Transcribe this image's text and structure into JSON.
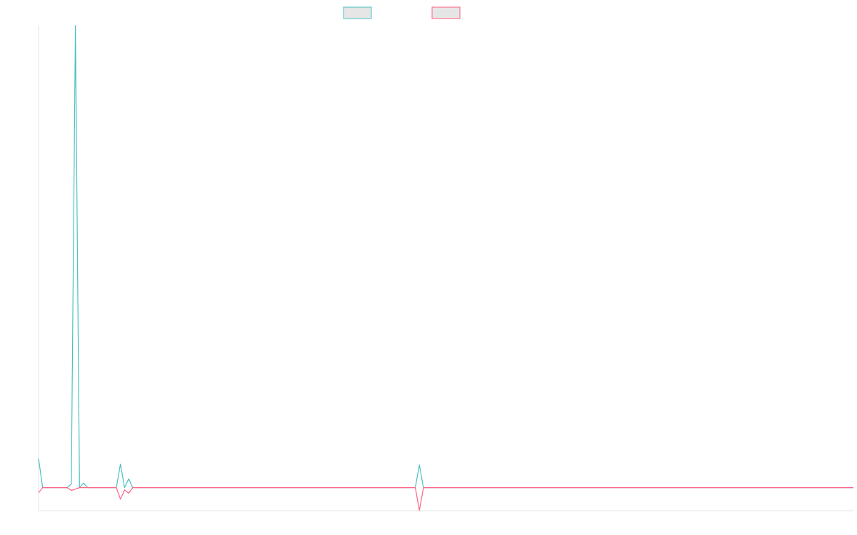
{
  "chart_data": {
    "type": "line",
    "categories": [
      null,
      null,
      null,
      null,
      null,
      null,
      null,
      null,
      null,
      null,
      null,
      null,
      null,
      null,
      null,
      null,
      null,
      null,
      null,
      null,
      null,
      null,
      null,
      null,
      null,
      null,
      null,
      null,
      null,
      null,
      null,
      null,
      null,
      null,
      null,
      null,
      null,
      null,
      null,
      null,
      null,
      null,
      null,
      null,
      null,
      null,
      null,
      null,
      null,
      null,
      null,
      null,
      null,
      null,
      null,
      null,
      null,
      null,
      null,
      null,
      null,
      null,
      null,
      null,
      null,
      null,
      null,
      null,
      null,
      null,
      null,
      null,
      null,
      null,
      null,
      null,
      null,
      null,
      null,
      null,
      null,
      null,
      null,
      null,
      null,
      null,
      null,
      null,
      null,
      null,
      null,
      null,
      null,
      null,
      null,
      null,
      null,
      null,
      null,
      null,
      null,
      null,
      null,
      null,
      null,
      null,
      null,
      null,
      null,
      null,
      null,
      null,
      null,
      null,
      null,
      null,
      null,
      null,
      null,
      null,
      null,
      null,
      null,
      null,
      null,
      null,
      null,
      null,
      null,
      null,
      null,
      null,
      null,
      null,
      null,
      null,
      null,
      null,
      null,
      null,
      null,
      null,
      null,
      null,
      null,
      null,
      null,
      null,
      null,
      null,
      null,
      null,
      null,
      null,
      null,
      null,
      null,
      null,
      null,
      null,
      null,
      null,
      null,
      null,
      null,
      null,
      null,
      null,
      null,
      null,
      null,
      null,
      null,
      null,
      null,
      null,
      null,
      null,
      null,
      null,
      null,
      null,
      null,
      null,
      null,
      null,
      null,
      null,
      null,
      null,
      null,
      null,
      null,
      null,
      null,
      null,
      null,
      null,
      null,
      null
    ],
    "series": [
      {
        "color": "#4bc0c0",
        "values": [
          6.3,
          0,
          0,
          0,
          0,
          0,
          0,
          0,
          0.8,
          100,
          0,
          1,
          0,
          0,
          0,
          0,
          0,
          0,
          0,
          0,
          5.1,
          0,
          1.9,
          0,
          0,
          0,
          0,
          0,
          0,
          0,
          0,
          0,
          0,
          0,
          0,
          0,
          0,
          0,
          0,
          0,
          0,
          0,
          0,
          0,
          0,
          0,
          0,
          0,
          0,
          0,
          0,
          0,
          0,
          0,
          0,
          0,
          0,
          0,
          0,
          0,
          0,
          0,
          0,
          0,
          0,
          0,
          0,
          0,
          0,
          0,
          0,
          0,
          0,
          0,
          0,
          0,
          0,
          0,
          0,
          0,
          0,
          0,
          0,
          0,
          0,
          0,
          0,
          0,
          0,
          0,
          0,
          0,
          0,
          4.9,
          0,
          0,
          0,
          0,
          0,
          0,
          0,
          0,
          0,
          0,
          0,
          0,
          0,
          0,
          0,
          0,
          0,
          0,
          0,
          0,
          0,
          0,
          0,
          0,
          0,
          0,
          0,
          0,
          0,
          0,
          0,
          0,
          0,
          0,
          0,
          0,
          0,
          0,
          0,
          0,
          0,
          0,
          0,
          0,
          0,
          0,
          0,
          0,
          0,
          0,
          0,
          0,
          0,
          0,
          0,
          0,
          0,
          0,
          0,
          0,
          0,
          0,
          0,
          0,
          0,
          0,
          0,
          0,
          0,
          0,
          0,
          0,
          0,
          0,
          0,
          0,
          0,
          0,
          0,
          0,
          0,
          0,
          0,
          0,
          0,
          0,
          0,
          0,
          0,
          0,
          0,
          0,
          0,
          0,
          0,
          0,
          0,
          0,
          0,
          0,
          0,
          0,
          0,
          0,
          0,
          0
        ]
      },
      {
        "color": "#ff6384",
        "values": [
          -1.1,
          0,
          0,
          0,
          0,
          0,
          0,
          0,
          -0.6,
          -0.3,
          0,
          0,
          0,
          0,
          0,
          0,
          0,
          0,
          0,
          0,
          -2.5,
          -0.5,
          -1.2,
          0,
          0,
          0,
          0,
          0,
          0,
          0,
          0,
          0,
          0,
          0,
          0,
          0,
          0,
          0,
          0,
          0,
          0,
          0,
          0,
          0,
          0,
          0,
          0,
          0,
          0,
          0,
          0,
          0,
          0,
          0,
          0,
          0,
          0,
          0,
          0,
          0,
          0,
          0,
          0,
          0,
          0,
          0,
          0,
          0,
          0,
          0,
          0,
          0,
          0,
          0,
          0,
          0,
          0,
          0,
          0,
          0,
          0,
          0,
          0,
          0,
          0,
          0,
          0,
          0,
          0,
          0,
          0,
          0,
          0,
          -4.9,
          0,
          0,
          0,
          0,
          0,
          0,
          0,
          0,
          0,
          0,
          0,
          0,
          0,
          0,
          0,
          0,
          0,
          0,
          0,
          0,
          0,
          0,
          0,
          0,
          0,
          0,
          0,
          0,
          0,
          0,
          0,
          0,
          0,
          0,
          0,
          0,
          0,
          0,
          0,
          0,
          0,
          0,
          0,
          0,
          0,
          0,
          0,
          0,
          0,
          0,
          0,
          0,
          0,
          0,
          0,
          0,
          0,
          0,
          0,
          0,
          0,
          0,
          0,
          0,
          0,
          0,
          0,
          0,
          0,
          0,
          0,
          0,
          0,
          0,
          0,
          0,
          0,
          0,
          0,
          0,
          0,
          0,
          0,
          0,
          0,
          0,
          0,
          0,
          0,
          0,
          0,
          0,
          0,
          0,
          0,
          0,
          0,
          0,
          0,
          0,
          0,
          0,
          0,
          0,
          0,
          0
        ]
      }
    ],
    "ylim": [
      -5,
      100
    ]
  }
}
